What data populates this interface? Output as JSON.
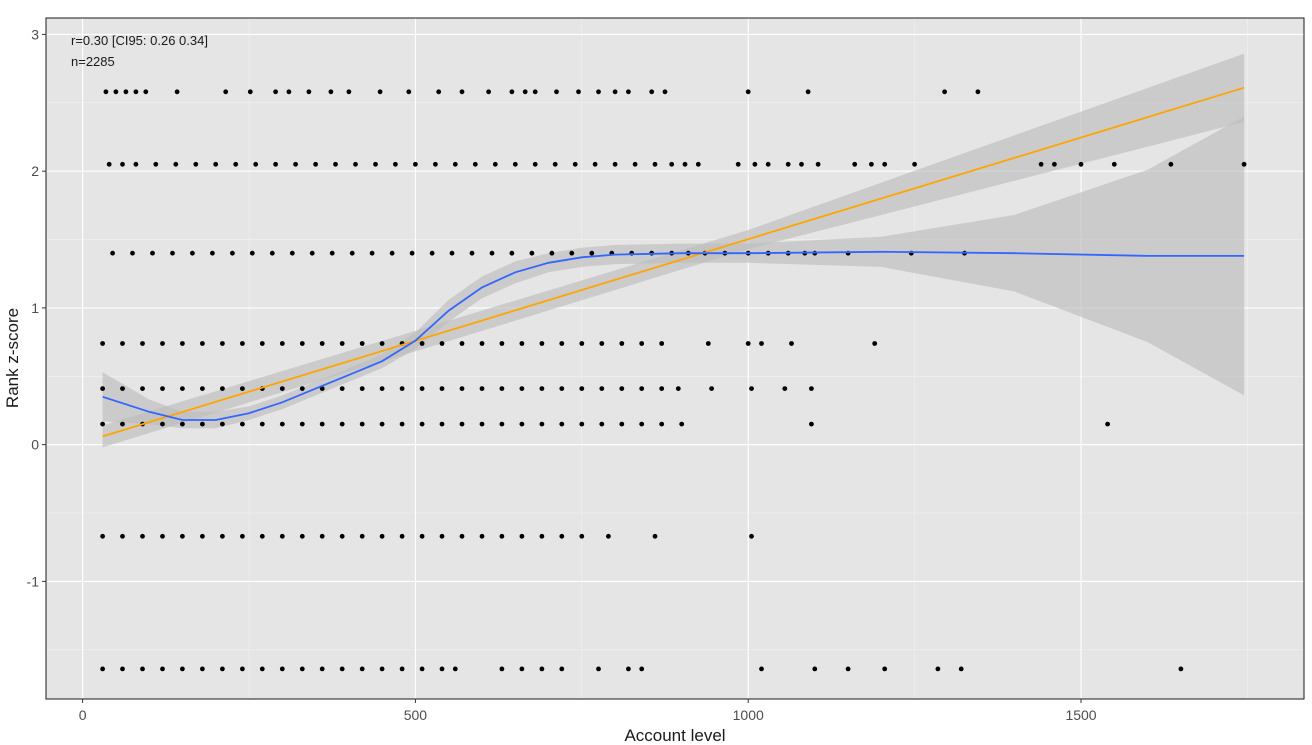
{
  "chart_data": {
    "type": "scatter",
    "xlabel": "Account level",
    "ylabel": "Rank z-score",
    "xlim": [
      -55,
      1835
    ],
    "ylim": [
      -1.86,
      3.12
    ],
    "x_ticks": [
      0,
      500,
      1000,
      1500
    ],
    "y_ticks": [
      -1,
      0,
      1,
      2,
      3
    ],
    "x_tick_labels": [
      "0",
      "500",
      "1000",
      "1500"
    ],
    "y_tick_labels": [
      "-1",
      "0",
      "1",
      "2",
      "3"
    ],
    "grid": true,
    "annotations": [
      "r=0.30 [CI95: 0.26 0.34]",
      "n=2285"
    ],
    "colors": {
      "panel": "#e5e5e5",
      "grid_major": "#ffffff",
      "points": "#000000",
      "linear_fit": "#ffa500",
      "loess_fit": "#3366ff",
      "ribbon": "#bdbdbd"
    },
    "series": [
      {
        "type": "scatter",
        "points": [
          {
            "y": 2.58,
            "x": [
              35,
              50,
              65,
              80,
              95,
              142,
              215,
              252,
              290,
              310,
              340,
              373,
              400,
              447,
              490,
              535,
              570,
              610,
              645,
              665,
              680,
              712,
              745,
              775,
              800,
              820,
              855,
              875,
              1000,
              1090,
              1295,
              1345
            ]
          },
          {
            "y": 2.05,
            "x": [
              40,
              60,
              80,
              110,
              140,
              170,
              200,
              230,
              260,
              290,
              320,
              350,
              380,
              410,
              440,
              470,
              500,
              530,
              560,
              590,
              620,
              650,
              680,
              710,
              740,
              770,
              800,
              830,
              860,
              885,
              905,
              925,
              985,
              1010,
              1030,
              1060,
              1080,
              1105,
              1160,
              1185,
              1205,
              1250,
              1440,
              1460,
              1500,
              1550,
              1635,
              1745
            ]
          },
          {
            "y": 1.4,
            "x": [
              45,
              75,
              105,
              135,
              165,
              195,
              225,
              255,
              285,
              315,
              345,
              375,
              405,
              435,
              465,
              495,
              525,
              555,
              585,
              615,
              645,
              675,
              705,
              735,
              765,
              795,
              825,
              855,
              885,
              910,
              935,
              965,
              1000,
              1030,
              1060,
              1085,
              1100,
              1150,
              1245,
              1325
            ]
          },
          {
            "y": 0.74,
            "x": [
              30,
              60,
              90,
              120,
              150,
              180,
              210,
              240,
              270,
              300,
              330,
              360,
              390,
              420,
              450,
              480,
              510,
              540,
              570,
              600,
              630,
              660,
              690,
              720,
              750,
              780,
              810,
              840,
              870,
              940,
              1000,
              1020,
              1065,
              1190
            ]
          },
          {
            "y": 0.41,
            "x": [
              30,
              60,
              90,
              120,
              150,
              180,
              210,
              240,
              270,
              300,
              330,
              360,
              390,
              420,
              450,
              480,
              510,
              540,
              570,
              600,
              630,
              660,
              690,
              720,
              750,
              780,
              810,
              840,
              870,
              895,
              945,
              1005,
              1055,
              1095
            ]
          },
          {
            "y": 0.15,
            "x": [
              30,
              60,
              90,
              120,
              150,
              180,
              210,
              240,
              270,
              300,
              330,
              360,
              390,
              420,
              450,
              480,
              510,
              540,
              570,
              600,
              630,
              660,
              690,
              720,
              750,
              780,
              810,
              840,
              870,
              900,
              1095,
              1540
            ]
          },
          {
            "y": -0.67,
            "x": [
              30,
              60,
              90,
              120,
              150,
              180,
              210,
              240,
              270,
              300,
              330,
              360,
              390,
              420,
              450,
              480,
              510,
              540,
              570,
              600,
              630,
              660,
              690,
              720,
              750,
              790,
              860,
              1005
            ]
          },
          {
            "y": -1.64,
            "x": [
              30,
              60,
              90,
              120,
              150,
              180,
              210,
              240,
              270,
              300,
              330,
              360,
              390,
              420,
              450,
              480,
              510,
              540,
              560,
              630,
              660,
              690,
              720,
              775,
              820,
              840,
              1020,
              1100,
              1150,
              1205,
              1285,
              1320,
              1650
            ]
          }
        ]
      },
      {
        "type": "line",
        "x": [
          30,
          1745
        ],
        "y": [
          0.06,
          2.61
        ]
      },
      {
        "type": "line",
        "x": [
          30,
          100,
          150,
          200,
          250,
          300,
          350,
          400,
          450,
          500,
          550,
          600,
          650,
          700,
          750,
          800,
          900,
          1000,
          1200,
          1400,
          1600,
          1745
        ],
        "y": [
          0.35,
          0.24,
          0.18,
          0.18,
          0.23,
          0.31,
          0.41,
          0.51,
          0.61,
          0.76,
          0.98,
          1.15,
          1.26,
          1.33,
          1.37,
          1.39,
          1.4,
          1.4,
          1.41,
          1.4,
          1.38,
          1.38
        ]
      }
    ],
    "ribbons": [
      {
        "series_index": 1,
        "x": [
          30,
          1000,
          1745
        ],
        "lower": [
          -0.02,
          1.43,
          2.36
        ],
        "upper": [
          0.14,
          1.57,
          2.86
        ]
      },
      {
        "series_index": 2,
        "x": [
          30,
          100,
          150,
          200,
          250,
          300,
          350,
          400,
          450,
          500,
          550,
          600,
          650,
          700,
          750,
          800,
          900,
          1000,
          1200,
          1400,
          1600,
          1745
        ],
        "lower": [
          0.17,
          0.15,
          0.12,
          0.12,
          0.18,
          0.26,
          0.36,
          0.46,
          0.56,
          0.7,
          0.9,
          1.07,
          1.18,
          1.26,
          1.3,
          1.32,
          1.33,
          1.33,
          1.3,
          1.12,
          0.75,
          0.36
        ],
        "upper": [
          0.53,
          0.33,
          0.24,
          0.24,
          0.28,
          0.36,
          0.46,
          0.56,
          0.66,
          0.82,
          1.06,
          1.23,
          1.34,
          1.4,
          1.44,
          1.46,
          1.47,
          1.47,
          1.52,
          1.68,
          2.01,
          2.4
        ]
      }
    ]
  }
}
